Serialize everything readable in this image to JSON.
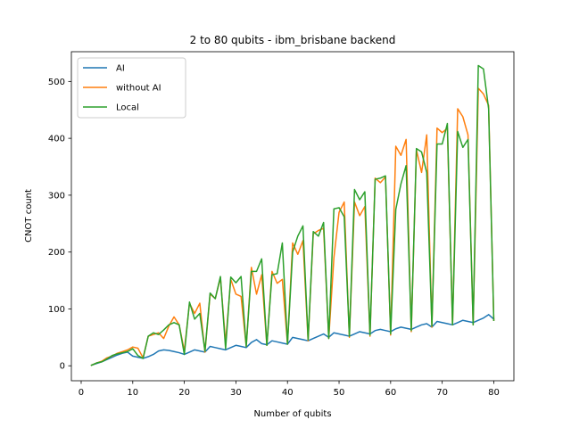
{
  "chart_data": {
    "type": "line",
    "title": "2 to 80 qubits - ibm_brisbane backend",
    "xlabel": "Number of qubits",
    "ylabel": "CNOT count",
    "xlim": [
      -1.9,
      83.9
    ],
    "ylim": [
      -26.3,
      552.3
    ],
    "xticks": [
      0,
      10,
      20,
      30,
      40,
      50,
      60,
      70,
      80
    ],
    "yticks": [
      0,
      100,
      200,
      300,
      400,
      500
    ],
    "grid": false,
    "legend_position": "upper left",
    "x": [
      2,
      3,
      4,
      5,
      6,
      7,
      8,
      9,
      10,
      11,
      12,
      13,
      14,
      15,
      16,
      17,
      18,
      19,
      20,
      21,
      22,
      23,
      24,
      25,
      26,
      27,
      28,
      29,
      30,
      31,
      32,
      33,
      34,
      35,
      36,
      37,
      38,
      39,
      40,
      41,
      42,
      43,
      44,
      45,
      46,
      47,
      48,
      49,
      50,
      51,
      52,
      53,
      54,
      55,
      56,
      57,
      58,
      59,
      60,
      61,
      62,
      63,
      64,
      65,
      66,
      67,
      68,
      69,
      70,
      71,
      72,
      73,
      74,
      75,
      76,
      77,
      78,
      79,
      80
    ],
    "series": [
      {
        "name": "AI",
        "color": "#1f77b4",
        "values": [
          1,
          4,
          7,
          11,
          15,
          19,
          22,
          24,
          17,
          15,
          13,
          16,
          20,
          26,
          28,
          27,
          25,
          23,
          20,
          24,
          28,
          26,
          24,
          34,
          32,
          30,
          28,
          32,
          36,
          34,
          32,
          41,
          46,
          39,
          37,
          44,
          42,
          40,
          38,
          50,
          48,
          46,
          44,
          48,
          52,
          56,
          50,
          58,
          56,
          54,
          52,
          56,
          60,
          58,
          56,
          62,
          64,
          62,
          60,
          65,
          68,
          66,
          64,
          68,
          72,
          74,
          68,
          78,
          76,
          74,
          72,
          76,
          80,
          78,
          76,
          80,
          84,
          90,
          82
        ]
      },
      {
        "name": "without AI",
        "color": "#ff7f0e",
        "values": [
          1,
          5,
          8,
          14,
          17,
          22,
          25,
          28,
          33,
          31,
          14,
          52,
          55,
          58,
          48,
          70,
          86,
          72,
          26,
          110,
          92,
          110,
          24,
          126,
          118,
          155,
          40,
          152,
          126,
          122,
          34,
          173,
          126,
          160,
          36,
          166,
          145,
          152,
          38,
          216,
          196,
          220,
          44,
          232,
          238,
          242,
          48,
          190,
          270,
          288,
          50,
          288,
          264,
          280,
          52,
          330,
          322,
          332,
          54,
          386,
          370,
          398,
          60,
          380,
          340,
          406,
          68,
          418,
          410,
          418,
          72,
          452,
          438,
          406,
          72,
          488,
          478,
          458,
          80
        ]
      },
      {
        "name": "Local",
        "color": "#2ca02c",
        "values": [
          1,
          5,
          7,
          12,
          18,
          21,
          23,
          25,
          30,
          18,
          13,
          52,
          58,
          55,
          63,
          72,
          76,
          72,
          20,
          112,
          82,
          92,
          26,
          128,
          118,
          157,
          30,
          156,
          146,
          157,
          34,
          166,
          166,
          188,
          36,
          160,
          162,
          216,
          38,
          200,
          228,
          246,
          46,
          236,
          228,
          252,
          48,
          276,
          278,
          262,
          52,
          310,
          292,
          306,
          54,
          328,
          330,
          334,
          56,
          275,
          320,
          352,
          62,
          382,
          376,
          340,
          70,
          390,
          390,
          426,
          72,
          412,
          384,
          398,
          72,
          528,
          522,
          452,
          80
        ]
      }
    ]
  }
}
